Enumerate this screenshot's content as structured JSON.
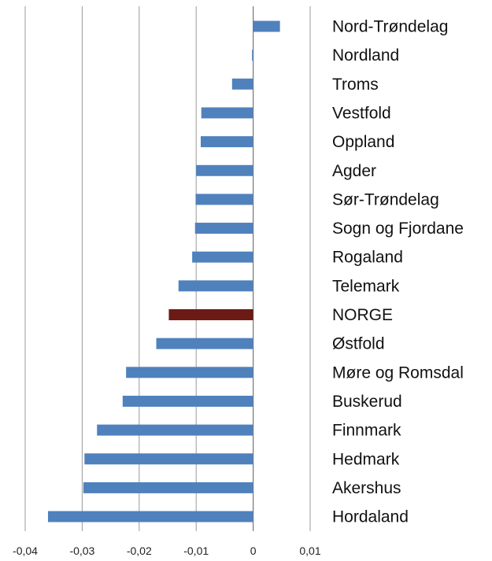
{
  "chart_data": {
    "type": "bar",
    "orientation": "horizontal",
    "categories": [
      "Nord-Trøndelag",
      "Nordland",
      "Troms",
      "Vestfold",
      "Oppland",
      "Agder",
      "Sør-Trøndelag",
      "Sogn og Fjordane",
      "Rogaland",
      "Telemark",
      "NORGE",
      "Østfold",
      "Møre og Romsdal",
      "Buskerud",
      "Finnmark",
      "Hedmark",
      "Akershus",
      "Hordaland"
    ],
    "values": [
      0.0047,
      -0.0002,
      -0.0037,
      -0.0091,
      -0.0092,
      -0.01,
      -0.0101,
      -0.0102,
      -0.0107,
      -0.0131,
      -0.0148,
      -0.017,
      -0.0223,
      -0.0229,
      -0.0274,
      -0.0296,
      -0.0298,
      -0.036
    ],
    "highlight": "NORGE",
    "xlim": [
      -0.04,
      0.01
    ],
    "xticks": [
      "-0,04",
      "-0,03",
      "-0,02",
      "-0,01",
      "0",
      "0,01"
    ],
    "xtick_values": [
      -0.04,
      -0.03,
      -0.02,
      -0.01,
      0,
      0.01
    ],
    "grid": "vertical",
    "colors": {
      "bar": "#4f81bd",
      "highlight": "#6b1a16",
      "grid": "#9a9a9a"
    },
    "title": "",
    "xlabel": "",
    "ylabel": ""
  }
}
